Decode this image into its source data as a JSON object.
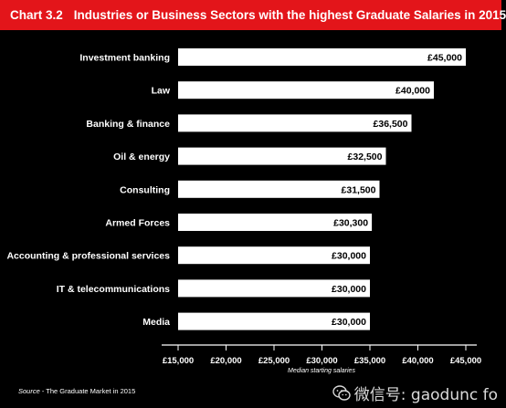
{
  "header": {
    "chart_number": "Chart 3.2",
    "title": "Industries or Business Sectors with the highest Graduate Salaries in 2015"
  },
  "chart_data": {
    "type": "bar",
    "orientation": "horizontal",
    "title": "Industries or Business Sectors with the highest Graduate Salaries in 2015",
    "xlabel": "Median starting salaries",
    "ylabel": "",
    "categories": [
      "Investment banking",
      "Law",
      "Banking & finance",
      "Oil & energy",
      "Consulting",
      "Armed Forces",
      "Accounting & professional services",
      "IT & telecommunications",
      "Media"
    ],
    "values": [
      45000,
      40000,
      36500,
      32500,
      31500,
      30300,
      30000,
      30000,
      30000
    ],
    "value_labels": [
      "£45,000",
      "£40,000",
      "£36,500",
      "£32,500",
      "£31,500",
      "£30,300",
      "£30,000",
      "£30,000",
      "£30,000"
    ],
    "xlim": [
      15000,
      45000
    ],
    "x_ticks": [
      15000,
      20000,
      25000,
      30000,
      35000,
      40000,
      45000
    ],
    "x_tick_labels": [
      "£15,000",
      "£20,000",
      "£25,000",
      "£30,000",
      "£35,000",
      "£40,000",
      "£45,000"
    ],
    "grid": false,
    "colors": {
      "background": "#000000",
      "bar": "#ffffff",
      "text": "#ffffff",
      "accent": "#e3151a"
    }
  },
  "source": {
    "label": "Source",
    "text": " - The Graduate Market in 2015"
  },
  "watermark": {
    "text": "微信号: gaodunc fo",
    "icon": "wechat-icon"
  }
}
